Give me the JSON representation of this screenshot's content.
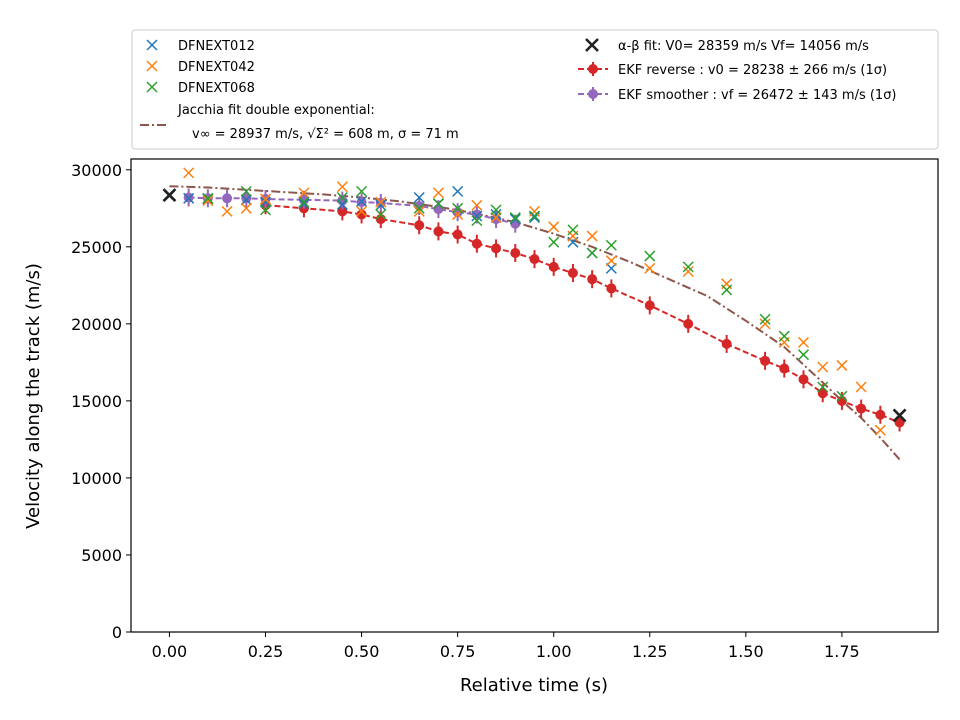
{
  "chart_data": {
    "type": "scatter",
    "xlabel": "Relative time (s)",
    "ylabel": "Velocity along the track (m/s)",
    "xlim": [
      -0.1,
      2.0
    ],
    "ylim": [
      0,
      30700
    ],
    "xticks": [
      "0.00",
      "0.25",
      "0.50",
      "0.75",
      "1.00",
      "1.25",
      "1.50",
      "1.75"
    ],
    "yticks": [
      "0",
      "5000",
      "10000",
      "15000",
      "20000",
      "25000",
      "30000"
    ],
    "grid": false,
    "legend_position": "above plot",
    "series": [
      {
        "name": "DFNEXT012",
        "marker": "x",
        "color": "#1f77b4",
        "x": [
          0.0,
          0.05,
          0.1,
          0.2,
          0.25,
          0.35,
          0.45,
          0.5,
          0.55,
          0.65,
          0.7,
          0.75,
          0.8,
          0.85,
          0.9,
          0.95,
          1.05,
          1.1,
          1.15
        ],
        "y": [
          28300,
          28150,
          28100,
          28050,
          27900,
          27800,
          27750,
          27950,
          27700,
          28200,
          27800,
          28600,
          27000,
          27100,
          26800,
          26900,
          25300,
          24600,
          23600
        ]
      },
      {
        "name": "DFNEXT042",
        "marker": "x",
        "color": "#ff7f0e",
        "x": [
          0.05,
          0.1,
          0.15,
          0.2,
          0.25,
          0.35,
          0.45,
          0.5,
          0.55,
          0.65,
          0.7,
          0.75,
          0.8,
          0.85,
          0.95,
          1.0,
          1.05,
          1.1,
          1.15,
          1.25,
          1.35,
          1.45,
          1.55,
          1.6,
          1.65,
          1.7,
          1.75,
          1.8,
          1.85
        ],
        "y": [
          29800,
          28000,
          27300,
          27500,
          28100,
          28500,
          28900,
          27300,
          27900,
          27300,
          28500,
          27100,
          27700,
          26900,
          27300,
          26300,
          25700,
          25700,
          24100,
          23600,
          23400,
          22600,
          20000,
          18800,
          18800,
          17200,
          17300,
          15900,
          13100
        ]
      },
      {
        "name": "DFNEXT068",
        "marker": "x",
        "color": "#2ca02c",
        "x": [
          0.0,
          0.1,
          0.2,
          0.25,
          0.35,
          0.45,
          0.5,
          0.55,
          0.65,
          0.7,
          0.75,
          0.8,
          0.85,
          0.9,
          0.95,
          1.0,
          1.05,
          1.1,
          1.15,
          1.25,
          1.35,
          1.45,
          1.55,
          1.6,
          1.65,
          1.7,
          1.75
        ],
        "y": [
          28300,
          28150,
          28600,
          27400,
          27900,
          28200,
          28600,
          27100,
          27500,
          27800,
          27500,
          26700,
          27400,
          26900,
          27000,
          25300,
          26100,
          24600,
          25100,
          24400,
          23700,
          22200,
          20300,
          19200,
          18000,
          15900,
          15300
        ]
      },
      {
        "name": "Jacchia fit double exponential:",
        "name_line2": "v∞ = 28937 m/s, √Σ² = 608 m, σ = 71 m",
        "style": "dashdot",
        "color": "#8c564b",
        "x": [
          0.0,
          0.1,
          0.2,
          0.3,
          0.4,
          0.5,
          0.6,
          0.7,
          0.8,
          0.9,
          1.0,
          1.1,
          1.2,
          1.3,
          1.4,
          1.5,
          1.6,
          1.7,
          1.75,
          1.8,
          1.85,
          1.9
        ],
        "y": [
          28937,
          28850,
          28700,
          28550,
          28400,
          28200,
          27950,
          27600,
          27150,
          26600,
          25850,
          25000,
          24000,
          22900,
          21800,
          20200,
          18500,
          16200,
          15000,
          13900,
          12600,
          11200
        ]
      },
      {
        "name": "EKF reverse : v0 =  28238 ± 266 m/s (1σ)",
        "style": "dashed-errorbar",
        "color": "#d62728",
        "x": [
          0.25,
          0.35,
          0.45,
          0.5,
          0.55,
          0.65,
          0.7,
          0.75,
          0.8,
          0.85,
          0.9,
          0.95,
          1.0,
          1.05,
          1.1,
          1.15,
          1.25,
          1.35,
          1.45,
          1.55,
          1.6,
          1.65,
          1.7,
          1.75,
          1.8,
          1.85,
          1.9
        ],
        "y": [
          27700,
          27500,
          27300,
          27100,
          26800,
          26400,
          26000,
          25800,
          25200,
          24900,
          24600,
          24200,
          23700,
          23300,
          22900,
          22300,
          21200,
          20000,
          18700,
          17600,
          17100,
          16400,
          15500,
          15000,
          14500,
          14100,
          13600
        ]
      },
      {
        "name": "EKF smoother : vf =  26472 ± 143 m/s (1σ)",
        "style": "dashed-errorbar",
        "color": "#9467bd",
        "x": [
          0.05,
          0.1,
          0.15,
          0.2,
          0.25,
          0.35,
          0.45,
          0.5,
          0.55,
          0.65,
          0.7,
          0.75,
          0.8,
          0.85,
          0.9
        ],
        "y": [
          28200,
          28150,
          28150,
          28150,
          28100,
          28050,
          28000,
          27900,
          27850,
          27650,
          27450,
          27250,
          27100,
          26800,
          26500
        ]
      },
      {
        "name": "α-β fit: V0= 28359 m/s   Vf= 14056 m/s",
        "marker": "x",
        "color": "#222222",
        "x": [
          0.0,
          1.9
        ],
        "y": [
          28359,
          14056
        ]
      }
    ]
  }
}
